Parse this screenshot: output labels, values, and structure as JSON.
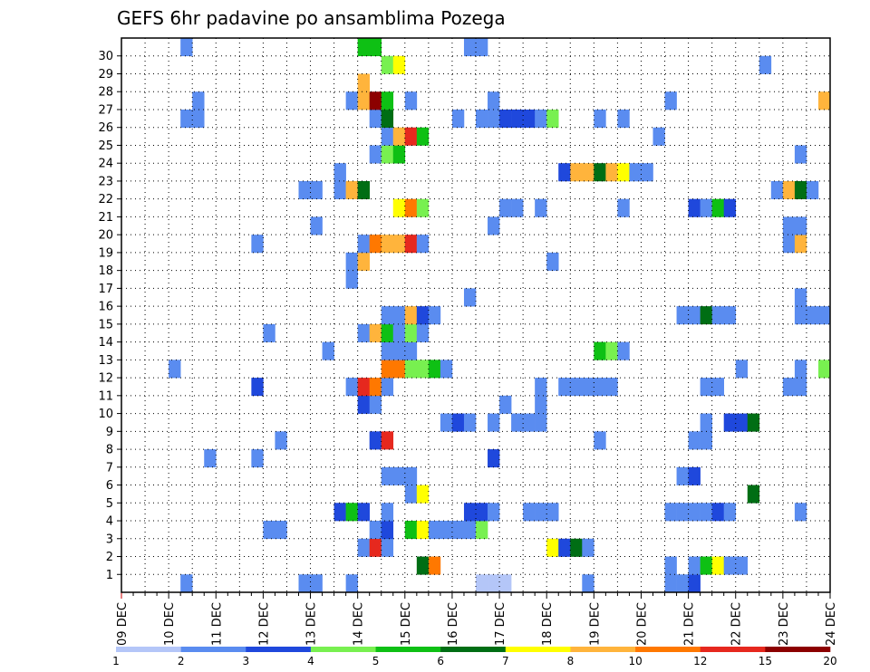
{
  "chart_data": {
    "type": "heatmap",
    "title": "GEFS 6hr padavine po ansamblima Pozega",
    "xlabel": "",
    "ylabel": "",
    "x_tick_labels": [
      "09 DEC",
      "10 DEC",
      "11 DEC",
      "12 DEC",
      "13 DEC",
      "14 DEC",
      "15 DEC",
      "16 DEC",
      "17 DEC",
      "18 DEC",
      "19 DEC",
      "20 DEC",
      "21 DEC",
      "22 DEC",
      "23 DEC",
      "24 DEC"
    ],
    "y_tick_labels": [
      "1",
      "2",
      "3",
      "4",
      "5",
      "6",
      "7",
      "8",
      "9",
      "10",
      "11",
      "12",
      "13",
      "14",
      "15",
      "16",
      "17",
      "18",
      "19",
      "20",
      "21",
      "22",
      "23",
      "24",
      "25",
      "26",
      "27",
      "28",
      "29",
      "30"
    ],
    "ylim": [
      0,
      30
    ],
    "grid": true,
    "x_unit": "6-hour step",
    "n_steps": 60,
    "colorbar": {
      "labels": [
        "1",
        "2",
        "3",
        "4",
        "5",
        "6",
        "7",
        "8",
        "10",
        "12",
        "15",
        "20"
      ],
      "colors": [
        "#b4c6f8",
        "#5a8cf0",
        "#1f48dc",
        "#78f050",
        "#0ec014",
        "#006e14",
        "#ffff00",
        "#ffb43c",
        "#ff7800",
        "#e6281e",
        "#8c0000"
      ]
    },
    "cells": [
      [
        0,
        5,
        1
      ],
      [
        0,
        15,
        1
      ],
      [
        0,
        16,
        1
      ],
      [
        0,
        19,
        1
      ],
      [
        0,
        39,
        1
      ],
      [
        0,
        46,
        1
      ],
      [
        0,
        47,
        1
      ],
      [
        0,
        48,
        2
      ],
      [
        0,
        30,
        0
      ],
      [
        0,
        31,
        0
      ],
      [
        0,
        32,
        0
      ],
      [
        1,
        25,
        5
      ],
      [
        1,
        26,
        8
      ],
      [
        1,
        46,
        1
      ],
      [
        1,
        48,
        1
      ],
      [
        1,
        49,
        4
      ],
      [
        1,
        50,
        6
      ],
      [
        1,
        51,
        1
      ],
      [
        1,
        52,
        1
      ],
      [
        2,
        20,
        1
      ],
      [
        2,
        21,
        9
      ],
      [
        2,
        22,
        1
      ],
      [
        2,
        36,
        6
      ],
      [
        2,
        37,
        2
      ],
      [
        2,
        38,
        5
      ],
      [
        2,
        39,
        1
      ],
      [
        3,
        12,
        1
      ],
      [
        3,
        13,
        1
      ],
      [
        3,
        21,
        1
      ],
      [
        3,
        22,
        2
      ],
      [
        3,
        24,
        4
      ],
      [
        3,
        25,
        6
      ],
      [
        3,
        26,
        1
      ],
      [
        3,
        27,
        1
      ],
      [
        3,
        28,
        1
      ],
      [
        3,
        29,
        1
      ],
      [
        3,
        30,
        3
      ],
      [
        4,
        18,
        2
      ],
      [
        4,
        19,
        4
      ],
      [
        4,
        20,
        2
      ],
      [
        4,
        22,
        1
      ],
      [
        4,
        29,
        2
      ],
      [
        4,
        30,
        2
      ],
      [
        4,
        31,
        1
      ],
      [
        4,
        34,
        1
      ],
      [
        4,
        35,
        1
      ],
      [
        4,
        36,
        1
      ],
      [
        4,
        46,
        1
      ],
      [
        4,
        47,
        1
      ],
      [
        4,
        48,
        1
      ],
      [
        4,
        49,
        1
      ],
      [
        4,
        50,
        2
      ],
      [
        4,
        51,
        1
      ],
      [
        4,
        57,
        1
      ],
      [
        5,
        24,
        1
      ],
      [
        5,
        25,
        6
      ],
      [
        5,
        53,
        5
      ],
      [
        6,
        22,
        1
      ],
      [
        6,
        23,
        1
      ],
      [
        6,
        24,
        1
      ],
      [
        6,
        47,
        1
      ],
      [
        6,
        48,
        2
      ],
      [
        7,
        7,
        1
      ],
      [
        7,
        11,
        1
      ],
      [
        7,
        31,
        2
      ],
      [
        8,
        13,
        1
      ],
      [
        8,
        21,
        2
      ],
      [
        8,
        22,
        9
      ],
      [
        8,
        40,
        1
      ],
      [
        8,
        48,
        1
      ],
      [
        8,
        49,
        1
      ],
      [
        9,
        27,
        1
      ],
      [
        9,
        28,
        2
      ],
      [
        9,
        29,
        1
      ],
      [
        9,
        31,
        1
      ],
      [
        9,
        33,
        1
      ],
      [
        9,
        34,
        1
      ],
      [
        9,
        35,
        1
      ],
      [
        9,
        49,
        1
      ],
      [
        9,
        51,
        2
      ],
      [
        9,
        52,
        2
      ],
      [
        9,
        53,
        5
      ],
      [
        10,
        20,
        2
      ],
      [
        10,
        21,
        1
      ],
      [
        10,
        32,
        1
      ],
      [
        10,
        35,
        1
      ],
      [
        11,
        11,
        2
      ],
      [
        11,
        19,
        1
      ],
      [
        11,
        20,
        9
      ],
      [
        11,
        21,
        8
      ],
      [
        11,
        22,
        1
      ],
      [
        11,
        35,
        1
      ],
      [
        11,
        37,
        1
      ],
      [
        11,
        38,
        1
      ],
      [
        11,
        39,
        1
      ],
      [
        11,
        40,
        1
      ],
      [
        11,
        41,
        1
      ],
      [
        11,
        49,
        1
      ],
      [
        11,
        50,
        1
      ],
      [
        11,
        56,
        1
      ],
      [
        11,
        57,
        1
      ],
      [
        12,
        4,
        1
      ],
      [
        12,
        22,
        8
      ],
      [
        12,
        23,
        8
      ],
      [
        12,
        24,
        3
      ],
      [
        12,
        25,
        3
      ],
      [
        12,
        26,
        4
      ],
      [
        12,
        27,
        1
      ],
      [
        12,
        52,
        1
      ],
      [
        12,
        57,
        1
      ],
      [
        12,
        59,
        3
      ],
      [
        13,
        17,
        1
      ],
      [
        13,
        22,
        1
      ],
      [
        13,
        23,
        1
      ],
      [
        13,
        24,
        1
      ],
      [
        13,
        40,
        4
      ],
      [
        13,
        41,
        3
      ],
      [
        13,
        42,
        1
      ],
      [
        14,
        12,
        1
      ],
      [
        14,
        20,
        1
      ],
      [
        14,
        21,
        7
      ],
      [
        14,
        22,
        4
      ],
      [
        14,
        23,
        1
      ],
      [
        14,
        24,
        3
      ],
      [
        14,
        25,
        1
      ],
      [
        15,
        22,
        1
      ],
      [
        15,
        23,
        1
      ],
      [
        15,
        24,
        7
      ],
      [
        15,
        25,
        2
      ],
      [
        15,
        26,
        1
      ],
      [
        15,
        47,
        1
      ],
      [
        15,
        48,
        1
      ],
      [
        15,
        49,
        5
      ],
      [
        15,
        50,
        1
      ],
      [
        15,
        51,
        1
      ],
      [
        15,
        57,
        1
      ],
      [
        15,
        58,
        1
      ],
      [
        15,
        59,
        1
      ],
      [
        16,
        29,
        1
      ],
      [
        16,
        57,
        1
      ],
      [
        17,
        19,
        1
      ],
      [
        18,
        19,
        1
      ],
      [
        18,
        20,
        7
      ],
      [
        18,
        36,
        1
      ],
      [
        19,
        11,
        1
      ],
      [
        19,
        20,
        1
      ],
      [
        19,
        21,
        8
      ],
      [
        19,
        22,
        7
      ],
      [
        19,
        23,
        7
      ],
      [
        19,
        24,
        9
      ],
      [
        19,
        25,
        1
      ],
      [
        19,
        56,
        1
      ],
      [
        19,
        57,
        7
      ],
      [
        20,
        16,
        1
      ],
      [
        20,
        31,
        1
      ],
      [
        20,
        56,
        1
      ],
      [
        20,
        57,
        1
      ],
      [
        21,
        23,
        6
      ],
      [
        21,
        24,
        8
      ],
      [
        21,
        25,
        3
      ],
      [
        21,
        32,
        1
      ],
      [
        21,
        33,
        1
      ],
      [
        21,
        35,
        1
      ],
      [
        21,
        42,
        1
      ],
      [
        21,
        48,
        2
      ],
      [
        21,
        49,
        1
      ],
      [
        21,
        50,
        4
      ],
      [
        21,
        51,
        2
      ],
      [
        22,
        15,
        1
      ],
      [
        22,
        16,
        1
      ],
      [
        22,
        18,
        1
      ],
      [
        22,
        19,
        7
      ],
      [
        22,
        20,
        5
      ],
      [
        22,
        55,
        1
      ],
      [
        22,
        56,
        7
      ],
      [
        22,
        57,
        5
      ],
      [
        22,
        58,
        1
      ],
      [
        23,
        18,
        1
      ],
      [
        23,
        37,
        2
      ],
      [
        23,
        38,
        7
      ],
      [
        23,
        39,
        7
      ],
      [
        23,
        40,
        5
      ],
      [
        23,
        41,
        7
      ],
      [
        23,
        42,
        6
      ],
      [
        23,
        43,
        1
      ],
      [
        23,
        44,
        1
      ],
      [
        24,
        21,
        1
      ],
      [
        24,
        22,
        3
      ],
      [
        24,
        23,
        4
      ],
      [
        24,
        57,
        1
      ],
      [
        25,
        22,
        1
      ],
      [
        25,
        23,
        7
      ],
      [
        25,
        24,
        9
      ],
      [
        25,
        25,
        4
      ],
      [
        25,
        45,
        1
      ],
      [
        26,
        5,
        1
      ],
      [
        26,
        6,
        1
      ],
      [
        26,
        21,
        1
      ],
      [
        26,
        22,
        5
      ],
      [
        26,
        28,
        1
      ],
      [
        26,
        30,
        1
      ],
      [
        26,
        31,
        1
      ],
      [
        26,
        32,
        2
      ],
      [
        26,
        33,
        2
      ],
      [
        26,
        34,
        2
      ],
      [
        26,
        35,
        1
      ],
      [
        26,
        36,
        3
      ],
      [
        26,
        40,
        1
      ],
      [
        26,
        42,
        1
      ],
      [
        27,
        6,
        1
      ],
      [
        27,
        19,
        1
      ],
      [
        27,
        20,
        7
      ],
      [
        27,
        21,
        10
      ],
      [
        27,
        22,
        4
      ],
      [
        27,
        24,
        1
      ],
      [
        27,
        31,
        1
      ],
      [
        27,
        46,
        1
      ],
      [
        27,
        59,
        7
      ],
      [
        28,
        20,
        7
      ],
      [
        29,
        22,
        3
      ],
      [
        29,
        23,
        6
      ],
      [
        29,
        54,
        1
      ],
      [
        30,
        5,
        1
      ],
      [
        30,
        20,
        4
      ],
      [
        30,
        21,
        4
      ],
      [
        30,
        29,
        1
      ],
      [
        30,
        30,
        1
      ]
    ]
  }
}
